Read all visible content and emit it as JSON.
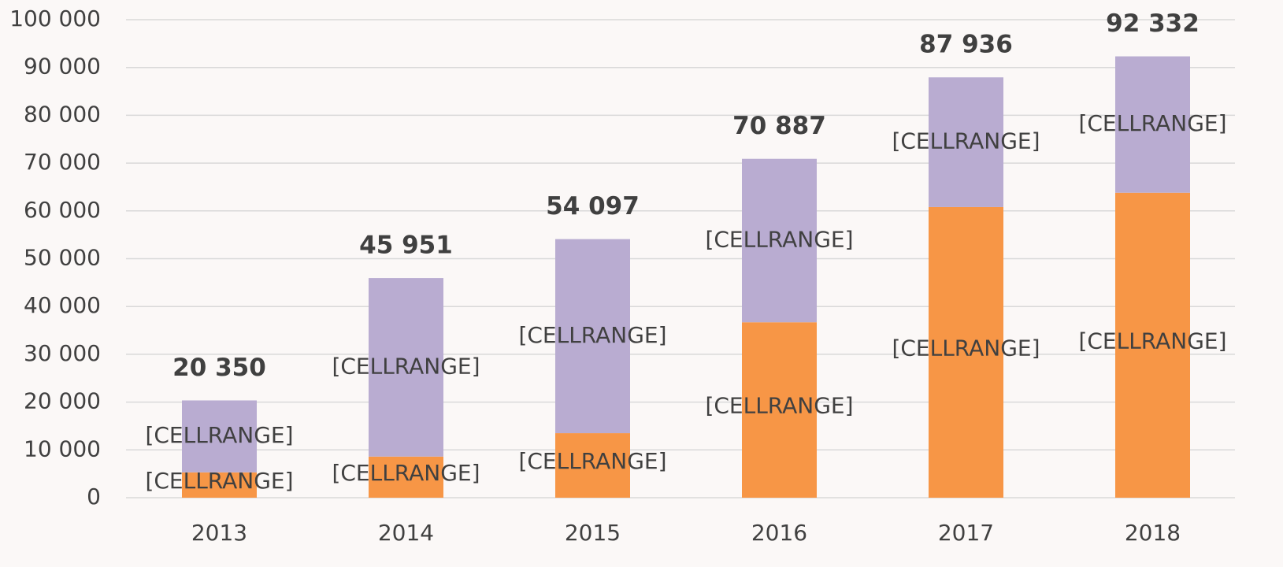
{
  "chart_data": {
    "type": "stacked_bar",
    "categories": [
      "2013",
      "2014",
      "2015",
      "2016",
      "2017",
      "2018"
    ],
    "series": [
      {
        "color": "#f79646",
        "values": [
          5300,
          8600,
          13500,
          36700,
          60800,
          63800
        ],
        "value_labels": [
          "[CELLRANGE]",
          "[CELLRANGE]",
          "[CELLRANGE]",
          "[CELLRANGE]",
          "[CELLRANGE]",
          "[CELLRANGE]"
        ]
      },
      {
        "color": "#b9acd1",
        "values": [
          15050,
          37351,
          40597,
          34187,
          27136,
          28532
        ],
        "value_labels": [
          "[CELLRANGE]",
          "[CELLRANGE]",
          "[CELLRANGE]",
          "[CELLRANGE]",
          "[CELLRANGE]",
          "[CELLRANGE]"
        ]
      }
    ],
    "totals": {
      "values": [
        20350,
        45951,
        54097,
        70887,
        87936,
        92332
      ],
      "value_labels": [
        "20 350",
        "45 951",
        "54 097",
        "70 887",
        "87 936",
        "92 332"
      ]
    },
    "ylim": [
      0,
      100000
    ],
    "yticks": [
      0,
      {
        "value": 10000,
        "label": "10 000"
      },
      {
        "value": 20000,
        "label": "20 000"
      },
      {
        "value": 30000,
        "label": "30 000"
      },
      {
        "value": 40000,
        "label": "40 000"
      },
      {
        "value": 50000,
        "label": "50 000"
      },
      {
        "value": 60000,
        "label": "60 000"
      },
      {
        "value": 70000,
        "label": "70 000"
      },
      {
        "value": 80000,
        "label": "80 000"
      },
      {
        "value": 90000,
        "label": "90 000"
      },
      {
        "value": 100000,
        "label": "100 000"
      }
    ],
    "grid": true
  }
}
